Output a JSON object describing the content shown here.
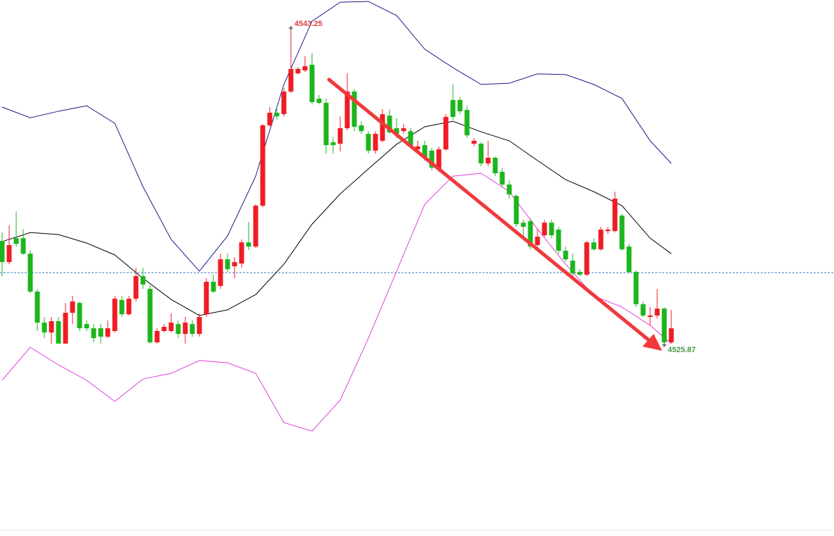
{
  "chart_data": {
    "type": "candlestick",
    "ylim": [
      4515.4,
      4544.79
    ],
    "up_color": "#ee1c25",
    "down_color": "#1db51d",
    "open": [
      4531.58,
      4530.42,
      4531.73,
      4531.73,
      4530.88,
      4528.8,
      4527.1,
      4526.56,
      4527.18,
      4525.95,
      4527.64,
      4528.18,
      4527.02,
      4526.79,
      4526.79,
      4526.33,
      4526.64,
      4528.34,
      4527.56,
      4528.41,
      4529.65,
      4528.95,
      4526.02,
      4526.64,
      4526.64,
      4527.02,
      4526.48,
      4527.02,
      4526.48,
      4527.56,
      4529.34,
      4529.11,
      4530.57,
      4530.19,
      4530.34,
      4531.5,
      4531.27,
      4533.51,
      4537.92,
      4538.61,
      4538.53,
      4539.77,
      4540.77,
      4540.93,
      4541.24,
      4539.38,
      4539.15,
      4536.99,
      4536.91,
      4537.76,
      4539.77,
      4537.92,
      4537.45,
      4536.53,
      4537.07,
      4538.45,
      4537.76,
      4537.6,
      4537.6,
      4536.6,
      4536.83,
      4536.53,
      4535.52,
      4536.6,
      4539.31,
      4539.31,
      4538.76,
      4536.91,
      4536.91,
      4535.83,
      4536.14,
      4535.37,
      4534.67,
      4534.05,
      4532.58,
      4532.66,
      4531.35,
      4531.89,
      4532.58,
      4532.2,
      4531.04,
      4530.5,
      4529.88,
      4529.73,
      4531.5,
      4531.12,
      4532.12,
      4532.12,
      4532.97,
      4531.27,
      4529.88,
      4528.11,
      4527.41,
      4527.49,
      4527.87,
      4526.02
    ],
    "high": [
      4532.04,
      4532.43,
      4533.2,
      4532.23,
      4531.08,
      4528.95,
      4527.41,
      4527.41,
      4527.41,
      4528.18,
      4528.57,
      4528.26,
      4527.22,
      4527.02,
      4527.02,
      4527.22,
      4528.57,
      4528.57,
      4528.57,
      4530.11,
      4530.11,
      4529.15,
      4526.79,
      4527.02,
      4527.6,
      4527.22,
      4527.41,
      4527.22,
      4527.6,
      4529.53,
      4529.73,
      4530.88,
      4530.88,
      4530.69,
      4531.66,
      4532.62,
      4533.59,
      4537.99,
      4538.92,
      4538.99,
      4539.96,
      4543.25,
      4541.12,
      4541.7,
      4541.89,
      4539.58,
      4539.38,
      4537.26,
      4538.41,
      4540.77,
      4539.92,
      4538.14,
      4537.6,
      4537.6,
      4538.8,
      4538.8,
      4538.3,
      4537.99,
      4537.76,
      4537.07,
      4537.07,
      4536.68,
      4536.76,
      4538.53,
      4540.16,
      4539.46,
      4538.99,
      4537.22,
      4536.99,
      4537.07,
      4536.21,
      4535.6,
      4534.9,
      4534.13,
      4532.74,
      4532.81,
      4532.23,
      4532.74,
      4532.74,
      4532.35,
      4531.27,
      4530.88,
      4530.03,
      4531.58,
      4531.73,
      4532.35,
      4532.35,
      4534.28,
      4533.05,
      4531.42,
      4529.96,
      4528.26,
      4527.95,
      4528.95,
      4527.95,
      4527.8
    ],
    "low": [
      4529.65,
      4530.3,
      4531.27,
      4530.81,
      4528.72,
      4526.64,
      4526.25,
      4525.95,
      4525.95,
      4525.95,
      4527.02,
      4526.64,
      4526.64,
      4526.02,
      4525.95,
      4526.25,
      4526.56,
      4527.41,
      4527.49,
      4528.26,
      4528.95,
      4525.95,
      4525.95,
      4526.56,
      4526.56,
      4526.25,
      4525.95,
      4526.33,
      4526.33,
      4527.41,
      4528.72,
      4528.95,
      4529.88,
      4529.53,
      4530.11,
      4531.08,
      4531.19,
      4533.43,
      4537.84,
      4538.22,
      4538.41,
      4539.69,
      4540.7,
      4540.85,
      4539.07,
      4539.07,
      4536.37,
      4536.37,
      4536.49,
      4537.64,
      4537.6,
      4537.45,
      4536.37,
      4536.37,
      4536.99,
      4537.45,
      4537.22,
      4537.45,
      4536.68,
      4536.37,
      4535.98,
      4535.44,
      4535.37,
      4536.53,
      4538.22,
      4538.53,
      4537.22,
      4536.76,
      4535.67,
      4535.67,
      4535.13,
      4534.51,
      4533.9,
      4532.35,
      4531.66,
      4531.12,
      4531.19,
      4531.81,
      4531.73,
      4530.88,
      4530.42,
      4529.65,
      4529.65,
      4529.65,
      4531.04,
      4531.04,
      4531.97,
      4532.04,
      4531.04,
      4529.8,
      4527.95,
      4527.41,
      4526.95,
      4527.33,
      4525.87,
      4525.95
    ],
    "close": [
      4530.42,
      4531.35,
      4531.42,
      4530.88,
      4528.8,
      4527.1,
      4526.56,
      4527.18,
      4525.95,
      4527.64,
      4528.26,
      4526.79,
      4526.79,
      4526.25,
      4526.33,
      4526.79,
      4528.41,
      4527.56,
      4528.41,
      4529.65,
      4529.19,
      4526.02,
      4526.64,
      4526.87,
      4527.1,
      4526.48,
      4527.1,
      4526.48,
      4527.41,
      4529.34,
      4528.8,
      4530.57,
      4530.03,
      4530.42,
      4531.5,
      4531.27,
      4533.51,
      4537.92,
      4538.61,
      4538.41,
      4539.77,
      4541.01,
      4541.01,
      4541.16,
      4539.19,
      4539.15,
      4536.83,
      4536.83,
      4537.76,
      4539.77,
      4537.84,
      4537.6,
      4536.53,
      4537.45,
      4538.53,
      4537.53,
      4537.45,
      4537.76,
      4536.83,
      4536.76,
      4536.14,
      4535.6,
      4536.6,
      4538.38,
      4538.38,
      4538.69,
      4537.37,
      4537.07,
      4535.83,
      4536.14,
      4535.29,
      4534.67,
      4534.13,
      4532.5,
      4532.35,
      4531.27,
      4531.81,
      4532.58,
      4531.89,
      4531.04,
      4530.57,
      4529.8,
      4529.73,
      4531.5,
      4531.12,
      4532.2,
      4532.2,
      4533.9,
      4531.12,
      4529.88,
      4528.11,
      4527.49,
      4527.49,
      4527.87,
      4526.02,
      4526.79
    ],
    "overlays": {
      "x": [
        0,
        4,
        8,
        12,
        16,
        20,
        24,
        28,
        32,
        36,
        40,
        44,
        48,
        52,
        56,
        60,
        64,
        68,
        72,
        76,
        80,
        84,
        88,
        92,
        95
      ],
      "series": [
        {
          "color": "#1a1a8c",
          "values": [
            4538.92,
            4538.33,
            4538.69,
            4538.99,
            4538.03,
            4534.55,
            4531.66,
            4529.92,
            4531.85,
            4535.13,
            4540.16,
            4543.63,
            4544.67,
            4544.71,
            4543.94,
            4542.09,
            4541.08,
            4540.16,
            4540.23,
            4540.74,
            4540.7,
            4540.16,
            4539.39,
            4537.07,
            4535.83
          ]
        },
        {
          "color": "#000000",
          "values": [
            4531.54,
            4532.04,
            4531.93,
            4531.46,
            4530.81,
            4529.53,
            4528.37,
            4527.49,
            4527.8,
            4528.64,
            4530.3,
            4532.5,
            4534.16,
            4535.53,
            4536.88,
            4537.84,
            4538.14,
            4537.56,
            4537.07,
            4535.99,
            4534.94,
            4534.28,
            4533.51,
            4531.73,
            4530.88
          ]
        },
        {
          "color": "#e040e0",
          "values": [
            4523.94,
            4525.75,
            4524.78,
            4523.94,
            4522.78,
            4524.01,
            4524.32,
            4525.02,
            4524.9,
            4524.32,
            4521.62,
            4521.15,
            4522.85,
            4526.25,
            4529.92,
            4533.59,
            4535.13,
            4535.29,
            4534.28,
            4532.23,
            4530.3,
            4528.57,
            4527.95,
            4526.95,
            4525.95
          ]
        }
      ]
    },
    "reference_line": {
      "value": 4529.84,
      "color": "#3a78c8"
    },
    "annotations": [
      {
        "value": 4543.25,
        "color": "#e03c3c"
      },
      {
        "value": 4525.87,
        "color": "#4a9a4a"
      }
    ]
  }
}
